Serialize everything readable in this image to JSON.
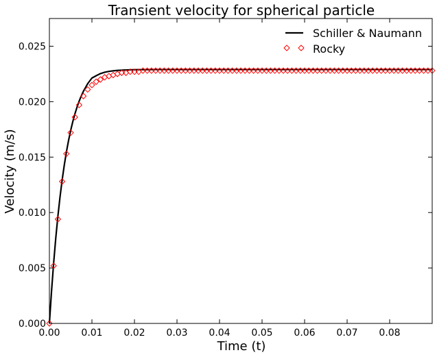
{
  "chart_data": {
    "type": "line",
    "title": "Transient velocity for spherical particle",
    "xlabel": "Time (t)",
    "ylabel": "Velocity (m/s)",
    "xlim": [
      0.0,
      0.09
    ],
    "ylim": [
      0.0,
      0.0275
    ],
    "x_ticks": [
      0.0,
      0.01,
      0.02,
      0.03,
      0.04,
      0.05,
      0.06,
      0.07,
      0.08
    ],
    "x_tick_labels": [
      "0.00",
      "0.01",
      "0.02",
      "0.03",
      "0.04",
      "0.05",
      "0.06",
      "0.07",
      "0.08"
    ],
    "y_ticks": [
      0.0,
      0.005,
      0.01,
      0.015,
      0.02,
      0.025
    ],
    "y_tick_labels": [
      "0.000",
      "0.005",
      "0.010",
      "0.015",
      "0.020",
      "0.025"
    ],
    "grid": false,
    "legend_position": "top-right",
    "series": [
      {
        "name": "Schiller & Naumann",
        "style": "line",
        "color": "#000000",
        "x": [
          0.0,
          0.0005,
          0.001,
          0.0015,
          0.002,
          0.0025,
          0.003,
          0.0035,
          0.004,
          0.0045,
          0.005,
          0.0055,
          0.006,
          0.0065,
          0.007,
          0.0075,
          0.008,
          0.009,
          0.01,
          0.011,
          0.012,
          0.013,
          0.014,
          0.015,
          0.016,
          0.018,
          0.02,
          0.022,
          0.025,
          0.03,
          0.035,
          0.04,
          0.05,
          0.06,
          0.07,
          0.08,
          0.09
        ],
        "y": [
          0.0,
          0.0029,
          0.00545,
          0.0077,
          0.00968,
          0.01141,
          0.01294,
          0.01428,
          0.01546,
          0.01649,
          0.0174,
          0.0182,
          0.0189,
          0.01951,
          0.02005,
          0.02052,
          0.02094,
          0.02162,
          0.02213,
          0.02234,
          0.02253,
          0.02265,
          0.02273,
          0.02278,
          0.02282,
          0.02286,
          0.02288,
          0.02289,
          0.0229,
          0.0229,
          0.0229,
          0.0229,
          0.0229,
          0.0229,
          0.0229,
          0.0229,
          0.0229
        ]
      },
      {
        "name": "Rocky",
        "style": "marker",
        "marker": "diamond",
        "color": "#ff0000",
        "x": [
          0.0,
          0.001,
          0.002,
          0.003,
          0.004,
          0.005,
          0.006,
          0.007,
          0.008,
          0.009,
          0.01,
          0.011,
          0.012,
          0.013,
          0.014,
          0.015,
          0.016,
          0.017,
          0.018,
          0.019,
          0.02,
          0.021,
          0.022,
          0.023,
          0.024,
          0.025,
          0.026,
          0.027,
          0.028,
          0.029,
          0.03,
          0.031,
          0.032,
          0.033,
          0.034,
          0.035,
          0.036,
          0.037,
          0.038,
          0.039,
          0.04,
          0.041,
          0.042,
          0.043,
          0.044,
          0.045,
          0.046,
          0.047,
          0.048,
          0.049,
          0.05,
          0.051,
          0.052,
          0.053,
          0.054,
          0.055,
          0.056,
          0.057,
          0.058,
          0.059,
          0.06,
          0.061,
          0.062,
          0.063,
          0.064,
          0.065,
          0.066,
          0.067,
          0.068,
          0.069,
          0.07,
          0.071,
          0.072,
          0.073,
          0.074,
          0.075,
          0.076,
          0.077,
          0.078,
          0.079,
          0.08,
          0.081,
          0.082,
          0.083,
          0.084,
          0.085,
          0.086,
          0.087,
          0.088,
          0.089,
          0.09
        ],
        "y": [
          0.0,
          0.0052,
          0.0094,
          0.0128,
          0.0153,
          0.0172,
          0.0186,
          0.0197,
          0.0205,
          0.0211,
          0.0215,
          0.0218,
          0.022,
          0.0222,
          0.0223,
          0.0224,
          0.0225,
          0.0226,
          0.0226,
          0.0227,
          0.0227,
          0.0227,
          0.0228,
          0.0228,
          0.0228,
          0.0228,
          0.0228,
          0.0228,
          0.0228,
          0.0228,
          0.0228,
          0.0228,
          0.0228,
          0.0228,
          0.0228,
          0.0228,
          0.0228,
          0.0228,
          0.0228,
          0.0228,
          0.0228,
          0.0228,
          0.0228,
          0.0228,
          0.0228,
          0.0228,
          0.0228,
          0.0228,
          0.0228,
          0.0228,
          0.0228,
          0.0228,
          0.0228,
          0.0228,
          0.0228,
          0.0228,
          0.0228,
          0.0228,
          0.0228,
          0.0228,
          0.0228,
          0.0228,
          0.0228,
          0.0228,
          0.0228,
          0.0228,
          0.0228,
          0.0228,
          0.0228,
          0.0228,
          0.0228,
          0.0228,
          0.0228,
          0.0228,
          0.0228,
          0.0228,
          0.0228,
          0.0228,
          0.0228,
          0.0228,
          0.0228,
          0.0228,
          0.0228,
          0.0228,
          0.0228,
          0.0228,
          0.0228,
          0.0228,
          0.0228,
          0.0228,
          0.0228
        ]
      }
    ]
  }
}
